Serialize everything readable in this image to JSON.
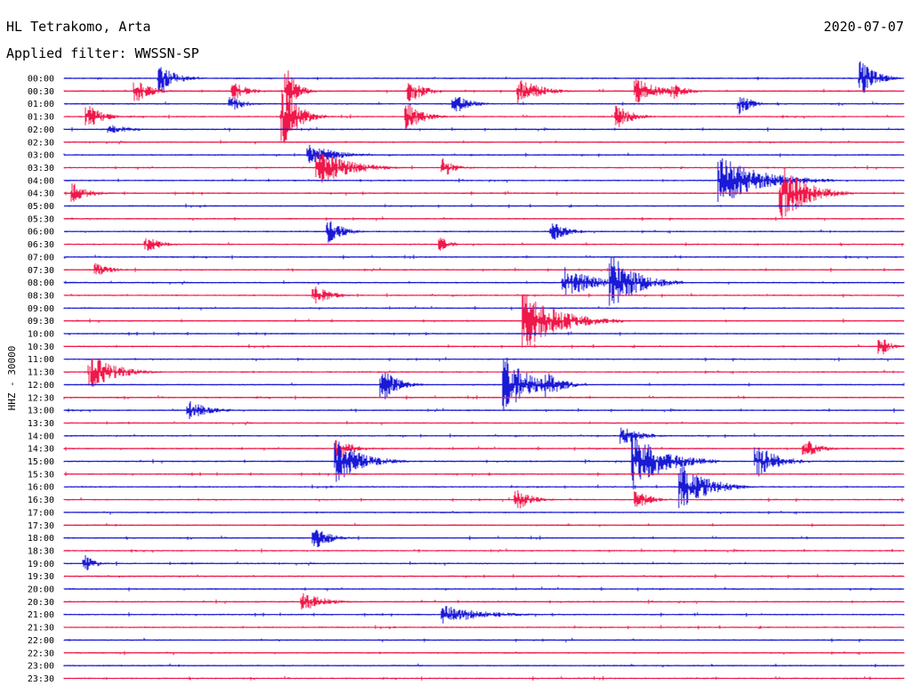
{
  "header": {
    "station": "HL Tetrakomo, Arta",
    "date": "2020-07-07",
    "filter": "Applied filter: WWSSN-SP"
  },
  "chart_data": {
    "type": "line",
    "title": "HL Tetrakomo, Arta",
    "subtitle": "Applied filter: WWSSN-SP",
    "date": "2020-07-07",
    "ylabel": "HHZ - 30000",
    "row_interval_minutes": 30,
    "tick_labels": [
      "00:00",
      "00:30",
      "01:00",
      "01:30",
      "02:00",
      "02:30",
      "03:00",
      "03:30",
      "04:00",
      "04:30",
      "05:00",
      "05:30",
      "06:00",
      "06:30",
      "07:00",
      "07:30",
      "08:00",
      "08:30",
      "09:00",
      "09:30",
      "10:00",
      "10:30",
      "11:00",
      "11:30",
      "12:00",
      "12:30",
      "13:00",
      "13:30",
      "14:00",
      "14:30",
      "15:00",
      "15:30",
      "16:00",
      "16:30",
      "17:00",
      "17:30",
      "18:00",
      "18:30",
      "19:00",
      "19:30",
      "20:00",
      "20:30",
      "21:00",
      "21:30",
      "22:00",
      "22:30",
      "23:00",
      "23:30"
    ],
    "colors": [
      "#1a1ad6",
      "#f0184a"
    ],
    "events": [
      {
        "row": 0,
        "minute": 3.5,
        "amp": 2.0,
        "dur": 1.5
      },
      {
        "row": 0,
        "minute": 28.5,
        "amp": 2.5,
        "dur": 1.5
      },
      {
        "row": 1,
        "minute": 2.6,
        "amp": 1.6,
        "dur": 1.5
      },
      {
        "row": 1,
        "minute": 6.1,
        "amp": 1.2,
        "dur": 1.5
      },
      {
        "row": 1,
        "minute": 8.0,
        "amp": 3.0,
        "dur": 1.0
      },
      {
        "row": 1,
        "minute": 12.4,
        "amp": 1.6,
        "dur": 1.5
      },
      {
        "row": 1,
        "minute": 16.3,
        "amp": 2.0,
        "dur": 2.0
      },
      {
        "row": 1,
        "minute": 20.5,
        "amp": 1.8,
        "dur": 2.0
      },
      {
        "row": 1,
        "minute": 21.8,
        "amp": 1.1,
        "dur": 1.5
      },
      {
        "row": 2,
        "minute": 6.0,
        "amp": 1.0,
        "dur": 1.5
      },
      {
        "row": 2,
        "minute": 14.0,
        "amp": 1.4,
        "dur": 1.5
      },
      {
        "row": 2,
        "minute": 24.2,
        "amp": 1.7,
        "dur": 1.0
      },
      {
        "row": 3,
        "minute": 0.9,
        "amp": 1.6,
        "dur": 1.5
      },
      {
        "row": 3,
        "minute": 7.9,
        "amp": 4.0,
        "dur": 1.5
      },
      {
        "row": 3,
        "minute": 12.3,
        "amp": 2.0,
        "dur": 1.5
      },
      {
        "row": 3,
        "minute": 19.8,
        "amp": 1.6,
        "dur": 1.5
      },
      {
        "row": 4,
        "minute": 1.7,
        "amp": 0.7,
        "dur": 2.0
      },
      {
        "row": 6,
        "minute": 8.8,
        "amp": 1.6,
        "dur": 2.5
      },
      {
        "row": 7,
        "minute": 9.1,
        "amp": 2.6,
        "dur": 3.0
      },
      {
        "row": 7,
        "minute": 13.6,
        "amp": 1.4,
        "dur": 1.0
      },
      {
        "row": 8,
        "minute": 23.5,
        "amp": 3.5,
        "dur": 4.0
      },
      {
        "row": 9,
        "minute": 0.4,
        "amp": 1.4,
        "dur": 1.5
      },
      {
        "row": 9,
        "minute": 25.7,
        "amp": 4.0,
        "dur": 2.5
      },
      {
        "row": 12,
        "minute": 9.5,
        "amp": 1.6,
        "dur": 1.5
      },
      {
        "row": 12,
        "minute": 17.5,
        "amp": 1.4,
        "dur": 1.5
      },
      {
        "row": 13,
        "minute": 3.0,
        "amp": 1.1,
        "dur": 1.5
      },
      {
        "row": 13,
        "minute": 13.5,
        "amp": 1.0,
        "dur": 1.0
      },
      {
        "row": 15,
        "minute": 1.2,
        "amp": 1.0,
        "dur": 1.5
      },
      {
        "row": 16,
        "minute": 17.9,
        "amp": 2.2,
        "dur": 3.0
      },
      {
        "row": 16,
        "minute": 19.6,
        "amp": 4.0,
        "dur": 2.5
      },
      {
        "row": 17,
        "minute": 9.0,
        "amp": 1.5,
        "dur": 1.5
      },
      {
        "row": 19,
        "minute": 16.5,
        "amp": 4.0,
        "dur": 3.5
      },
      {
        "row": 21,
        "minute": 29.2,
        "amp": 1.4,
        "dur": 1.0
      },
      {
        "row": 23,
        "minute": 1.0,
        "amp": 2.4,
        "dur": 2.5
      },
      {
        "row": 24,
        "minute": 11.4,
        "amp": 2.4,
        "dur": 1.5
      },
      {
        "row": 24,
        "minute": 15.8,
        "amp": 4.0,
        "dur": 2.5
      },
      {
        "row": 24,
        "minute": 17.3,
        "amp": 2.0,
        "dur": 1.5
      },
      {
        "row": 26,
        "minute": 4.5,
        "amp": 1.4,
        "dur": 2.0
      },
      {
        "row": 28,
        "minute": 20.0,
        "amp": 1.2,
        "dur": 2.0
      },
      {
        "row": 29,
        "minute": 9.8,
        "amp": 1.6,
        "dur": 1.5
      },
      {
        "row": 29,
        "minute": 26.5,
        "amp": 1.4,
        "dur": 1.5
      },
      {
        "row": 30,
        "minute": 9.8,
        "amp": 3.0,
        "dur": 2.5
      },
      {
        "row": 30,
        "minute": 20.4,
        "amp": 4.0,
        "dur": 3.0
      },
      {
        "row": 30,
        "minute": 24.8,
        "amp": 2.4,
        "dur": 2.0
      },
      {
        "row": 32,
        "minute": 22.1,
        "amp": 3.5,
        "dur": 2.5
      },
      {
        "row": 33,
        "minute": 16.2,
        "amp": 1.6,
        "dur": 1.5
      },
      {
        "row": 33,
        "minute": 20.5,
        "amp": 1.2,
        "dur": 1.5
      },
      {
        "row": 36,
        "minute": 9.0,
        "amp": 1.6,
        "dur": 1.5
      },
      {
        "row": 38,
        "minute": 0.8,
        "amp": 1.2,
        "dur": 1.0
      },
      {
        "row": 41,
        "minute": 8.6,
        "amp": 1.4,
        "dur": 2.0
      },
      {
        "row": 42,
        "minute": 13.6,
        "amp": 1.3,
        "dur": 4.0
      }
    ]
  }
}
